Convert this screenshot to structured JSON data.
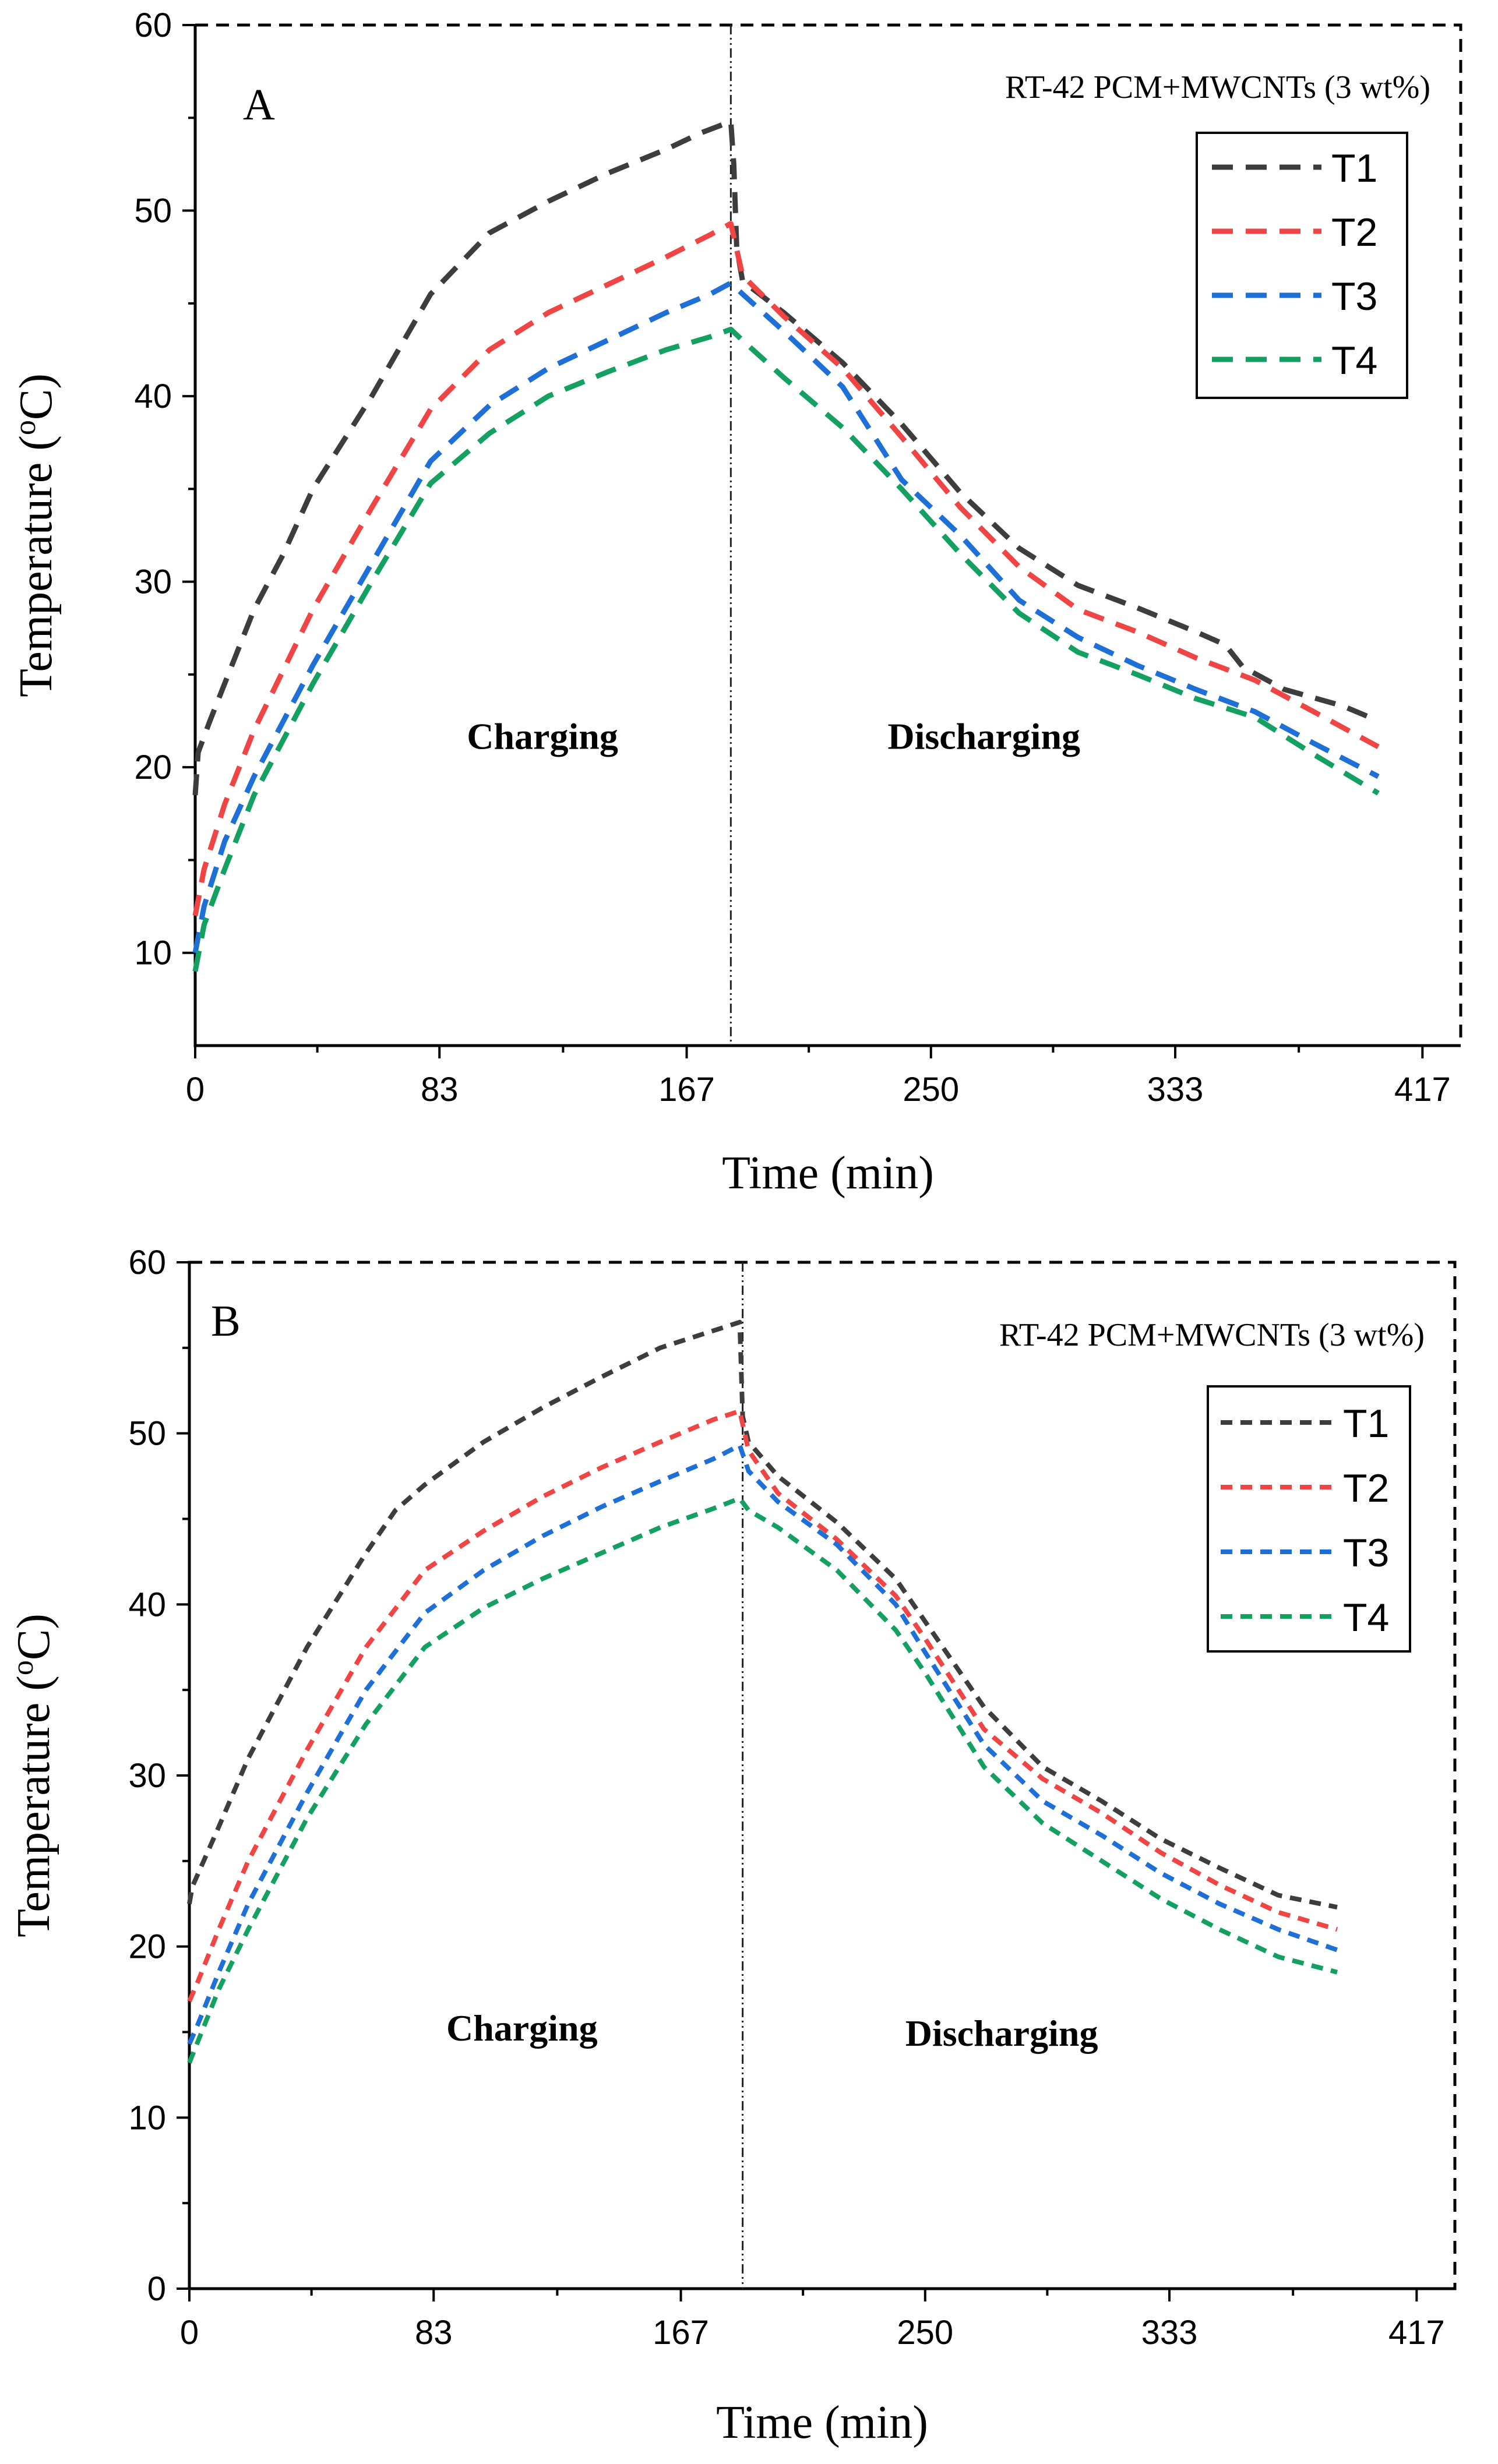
{
  "chart_data": [
    {
      "type": "line",
      "panel_label": "A",
      "annotation": "RT-42 PCM+MWCNTs (3 wt%)",
      "xlabel": "Time (min)",
      "ylabel_main": "Temperature (",
      "ylabel_sup": "o",
      "ylabel_end": "C)",
      "xlim": [
        0,
        430
      ],
      "ylim": [
        5,
        60
      ],
      "xticks": [
        0,
        83,
        167,
        250,
        333,
        417
      ],
      "yticks": [
        10,
        20,
        30,
        40,
        50,
        60
      ],
      "divider_x": 182,
      "regions": [
        {
          "label": "Charging",
          "x": 118,
          "y": 21
        },
        {
          "label": "Discharging",
          "x": 268,
          "y": 21
        }
      ],
      "legend_position": "top-right",
      "line_style": "long-dash",
      "series": [
        {
          "name": "T1",
          "color": "#3d3d3d",
          "points": [
            [
              0,
              18.5
            ],
            [
              1,
              20.8
            ],
            [
              5,
              22.5
            ],
            [
              10,
              24.5
            ],
            [
              20,
              28.5
            ],
            [
              30,
              31.5
            ],
            [
              40,
              35
            ],
            [
              60,
              40
            ],
            [
              80,
              45.5
            ],
            [
              100,
              48.8
            ],
            [
              120,
              50.5
            ],
            [
              140,
              52
            ],
            [
              160,
              53.3
            ],
            [
              172,
              54.2
            ],
            [
              182,
              54.8
            ],
            [
              183,
              52.5
            ],
            [
              184,
              48
            ],
            [
              186,
              46.2
            ],
            [
              200,
              44.5
            ],
            [
              220,
              41.8
            ],
            [
              240,
              38.5
            ],
            [
              260,
              34.8
            ],
            [
              280,
              31.8
            ],
            [
              300,
              29.8
            ],
            [
              320,
              28.6
            ],
            [
              340,
              27.3
            ],
            [
              350,
              26.6
            ],
            [
              356,
              25.4
            ],
            [
              370,
              24.2
            ],
            [
              390,
              23.3
            ],
            [
              402,
              22.5
            ]
          ]
        },
        {
          "name": "T2",
          "color": "#f04545",
          "points": [
            [
              0,
              12
            ],
            [
              3,
              14.5
            ],
            [
              10,
              18
            ],
            [
              20,
              22
            ],
            [
              40,
              28.5
            ],
            [
              60,
              34
            ],
            [
              80,
              39.3
            ],
            [
              100,
              42.5
            ],
            [
              120,
              44.5
            ],
            [
              140,
              46
            ],
            [
              160,
              47.5
            ],
            [
              175,
              48.7
            ],
            [
              182,
              49.3
            ],
            [
              186,
              46.5
            ],
            [
              200,
              44.3
            ],
            [
              220,
              41.5
            ],
            [
              240,
              37.8
            ],
            [
              260,
              34
            ],
            [
              280,
              30.8
            ],
            [
              300,
              28.5
            ],
            [
              320,
              27.3
            ],
            [
              340,
              25.9
            ],
            [
              360,
              24.7
            ],
            [
              380,
              23
            ],
            [
              402,
              21.1
            ]
          ]
        },
        {
          "name": "T3",
          "color": "#1f70d6",
          "points": [
            [
              0,
              10
            ],
            [
              3,
              12.5
            ],
            [
              10,
              16
            ],
            [
              20,
              19.5
            ],
            [
              40,
              25.5
            ],
            [
              60,
              31
            ],
            [
              80,
              36.5
            ],
            [
              100,
              39.5
            ],
            [
              120,
              41.5
            ],
            [
              140,
              43
            ],
            [
              160,
              44.5
            ],
            [
              175,
              45.5
            ],
            [
              182,
              46.1
            ],
            [
              186,
              45.5
            ],
            [
              200,
              43.5
            ],
            [
              220,
              40.5
            ],
            [
              240,
              35.5
            ],
            [
              260,
              32.5
            ],
            [
              280,
              29
            ],
            [
              300,
              27
            ],
            [
              320,
              25.5
            ],
            [
              340,
              24.2
            ],
            [
              360,
              23
            ],
            [
              380,
              21.3
            ],
            [
              402,
              19.5
            ]
          ]
        },
        {
          "name": "T4",
          "color": "#14a061",
          "points": [
            [
              0,
              9
            ],
            [
              3,
              11.5
            ],
            [
              10,
              14.5
            ],
            [
              20,
              18.5
            ],
            [
              40,
              24.5
            ],
            [
              60,
              30
            ],
            [
              80,
              35.3
            ],
            [
              100,
              38
            ],
            [
              120,
              40
            ],
            [
              140,
              41.3
            ],
            [
              160,
              42.5
            ],
            [
              175,
              43.2
            ],
            [
              182,
              43.6
            ],
            [
              186,
              43
            ],
            [
              200,
              41
            ],
            [
              220,
              38.3
            ],
            [
              240,
              35
            ],
            [
              260,
              31.5
            ],
            [
              280,
              28.3
            ],
            [
              300,
              26.2
            ],
            [
              320,
              25
            ],
            [
              340,
              23.7
            ],
            [
              360,
              22.7
            ],
            [
              380,
              20.7
            ],
            [
              402,
              18.6
            ]
          ]
        }
      ]
    },
    {
      "type": "line",
      "panel_label": "B",
      "annotation": "RT-42 PCM+MWCNTs (3 wt%)",
      "xlabel": "Time (min)",
      "ylabel_main": "Temperature (",
      "ylabel_sup": "o",
      "ylabel_end": "C)",
      "xlim": [
        0,
        430
      ],
      "ylim": [
        0,
        60
      ],
      "xticks": [
        0,
        83,
        167,
        250,
        333,
        417
      ],
      "yticks": [
        0,
        10,
        20,
        30,
        40,
        50,
        60
      ],
      "divider_x": 188,
      "regions": [
        {
          "label": "Charging",
          "x": 113,
          "y": 14.5
        },
        {
          "label": "Discharging",
          "x": 276,
          "y": 14.2
        }
      ],
      "legend_position": "top-right",
      "line_style": "short-dash",
      "series": [
        {
          "name": "T1",
          "color": "#3d3d3d",
          "points": [
            [
              0,
              22.5
            ],
            [
              1,
              23.5
            ],
            [
              10,
              27
            ],
            [
              20,
              31
            ],
            [
              40,
              37.5
            ],
            [
              60,
              43
            ],
            [
              70,
              45.5
            ],
            [
              80,
              47
            ],
            [
              100,
              49.5
            ],
            [
              120,
              51.5
            ],
            [
              140,
              53.3
            ],
            [
              160,
              55
            ],
            [
              178,
              56
            ],
            [
              187,
              56.5
            ],
            [
              188,
              51
            ],
            [
              190,
              49.5
            ],
            [
              200,
              47.5
            ],
            [
              220,
              44.8
            ],
            [
              240,
              41.5
            ],
            [
              250,
              39
            ],
            [
              270,
              34
            ],
            [
              290,
              30.5
            ],
            [
              310,
              28.5
            ],
            [
              330,
              26.3
            ],
            [
              350,
              24.6
            ],
            [
              370,
              23
            ],
            [
              390,
              22.3
            ]
          ]
        },
        {
          "name": "T2",
          "color": "#f04545",
          "points": [
            [
              0,
              16.8
            ],
            [
              3,
              18
            ],
            [
              10,
              21
            ],
            [
              20,
              25
            ],
            [
              40,
              31.5
            ],
            [
              60,
              37.5
            ],
            [
              80,
              42
            ],
            [
              100,
              44.3
            ],
            [
              120,
              46.3
            ],
            [
              140,
              48
            ],
            [
              160,
              49.5
            ],
            [
              178,
              50.8
            ],
            [
              187,
              51.3
            ],
            [
              190,
              49
            ],
            [
              200,
              46.5
            ],
            [
              220,
              43.8
            ],
            [
              240,
              40.5
            ],
            [
              250,
              38
            ],
            [
              270,
              32.7
            ],
            [
              290,
              29.8
            ],
            [
              310,
              27.8
            ],
            [
              330,
              25.5
            ],
            [
              350,
              23.6
            ],
            [
              370,
              22
            ],
            [
              390,
              21
            ]
          ]
        },
        {
          "name": "T3",
          "color": "#1f70d6",
          "points": [
            [
              0,
              14.3
            ],
            [
              3,
              15.5
            ],
            [
              10,
              18.5
            ],
            [
              20,
              22.5
            ],
            [
              40,
              29
            ],
            [
              60,
              35
            ],
            [
              80,
              39.5
            ],
            [
              100,
              42
            ],
            [
              120,
              44
            ],
            [
              140,
              45.7
            ],
            [
              160,
              47.2
            ],
            [
              178,
              48.5
            ],
            [
              187,
              49.3
            ],
            [
              190,
              47.8
            ],
            [
              200,
              46
            ],
            [
              220,
              43.5
            ],
            [
              240,
              40
            ],
            [
              250,
              37.2
            ],
            [
              270,
              31.8
            ],
            [
              290,
              28.5
            ],
            [
              310,
              26.5
            ],
            [
              330,
              24.3
            ],
            [
              350,
              22.5
            ],
            [
              370,
              21
            ],
            [
              390,
              19.8
            ]
          ]
        },
        {
          "name": "T4",
          "color": "#14a061",
          "points": [
            [
              0,
              13.2
            ],
            [
              3,
              14.5
            ],
            [
              10,
              17.5
            ],
            [
              20,
              21
            ],
            [
              40,
              27.5
            ],
            [
              60,
              33
            ],
            [
              80,
              37.5
            ],
            [
              100,
              39.8
            ],
            [
              120,
              41.5
            ],
            [
              140,
              43
            ],
            [
              160,
              44.5
            ],
            [
              178,
              45.6
            ],
            [
              187,
              46.2
            ],
            [
              190,
              45.5
            ],
            [
              200,
              44.5
            ],
            [
              220,
              42
            ],
            [
              240,
              38.5
            ],
            [
              250,
              36
            ],
            [
              270,
              30.5
            ],
            [
              290,
              27.2
            ],
            [
              310,
              25
            ],
            [
              330,
              22.8
            ],
            [
              350,
              21
            ],
            [
              370,
              19.4
            ],
            [
              390,
              18.5
            ]
          ]
        }
      ]
    }
  ]
}
